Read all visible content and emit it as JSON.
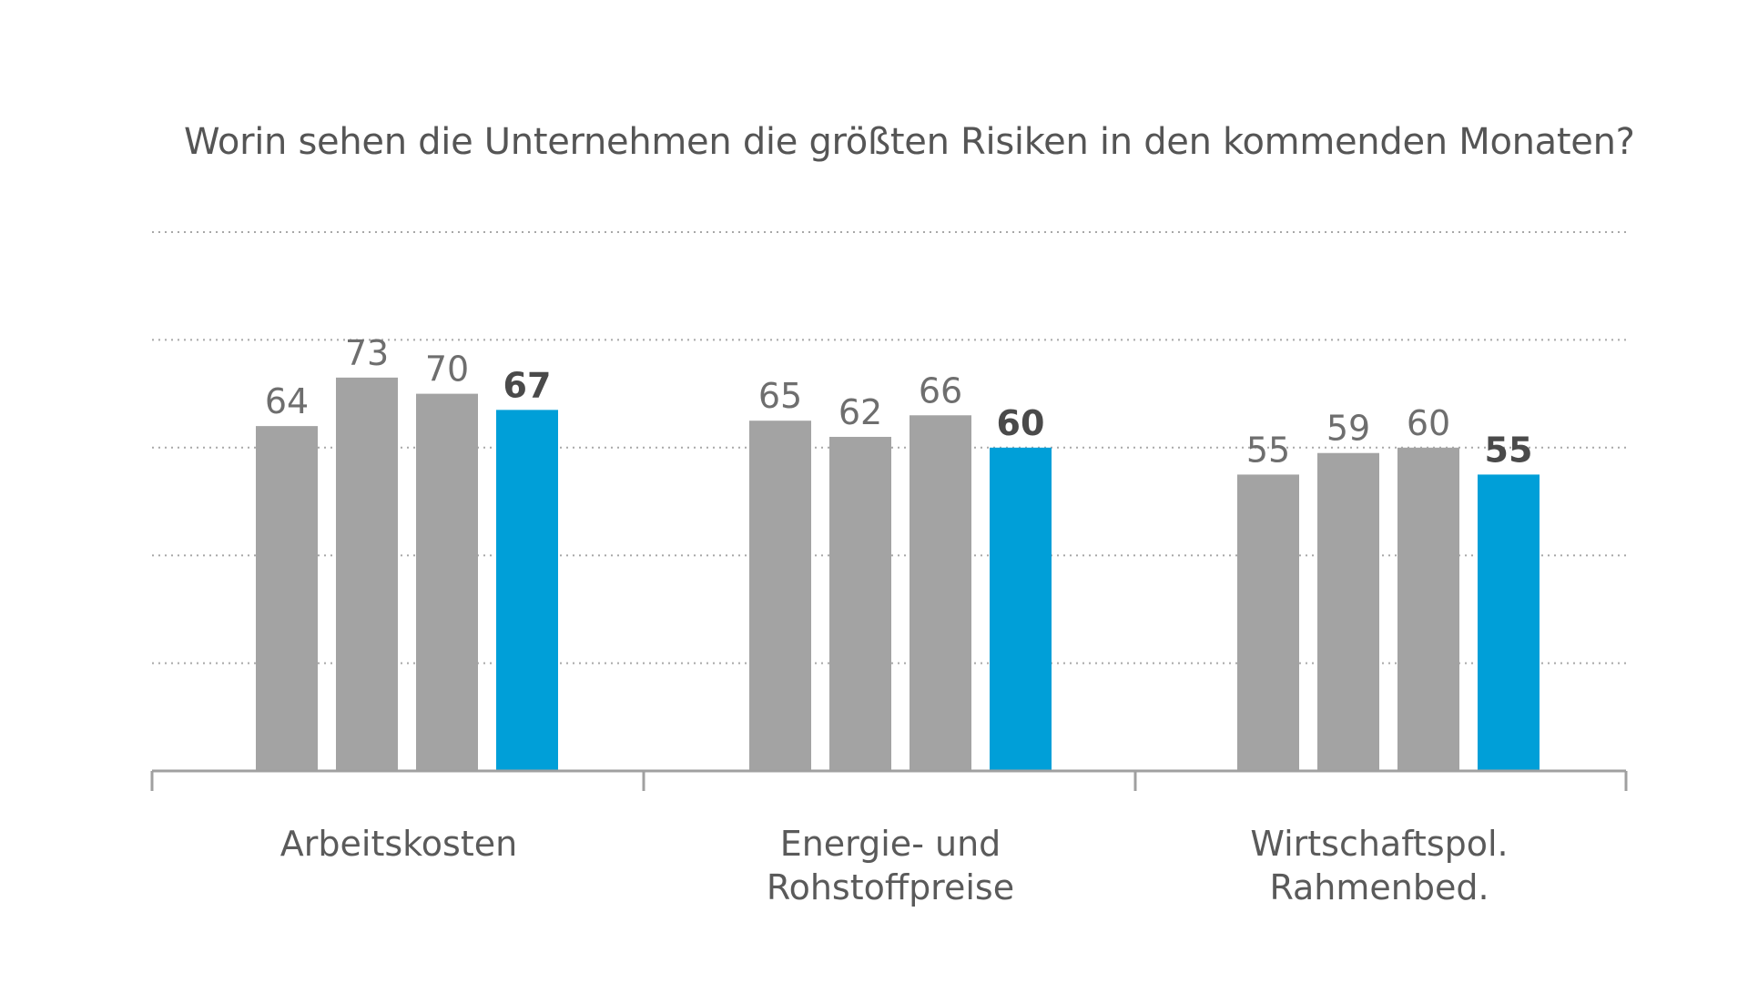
{
  "chart_data": {
    "type": "bar",
    "title": "Worin sehen die Unternehmen die größten Risiken in den kommenden Monaten?",
    "categories": [
      [
        "Arbeitskosten"
      ],
      [
        "Energie- und",
        "Rohstoffpreise"
      ],
      [
        "Wirtschaftspol.",
        "Rahmenbed."
      ]
    ],
    "series": [
      {
        "values": [
          64,
          65,
          55
        ]
      },
      {
        "values": [
          73,
          62,
          59
        ]
      },
      {
        "values": [
          70,
          66,
          60
        ]
      },
      {
        "values": [
          67,
          60,
          55
        ]
      }
    ],
    "highlight_series_index": 3,
    "ylim": [
      0,
      100
    ],
    "y_gridlines": [
      20,
      40,
      60,
      80,
      100
    ],
    "grid": true,
    "colors": {
      "series": [
        "#a3a3a3",
        "#a3a3a3",
        "#a3a3a3",
        "#009fd8"
      ]
    }
  }
}
